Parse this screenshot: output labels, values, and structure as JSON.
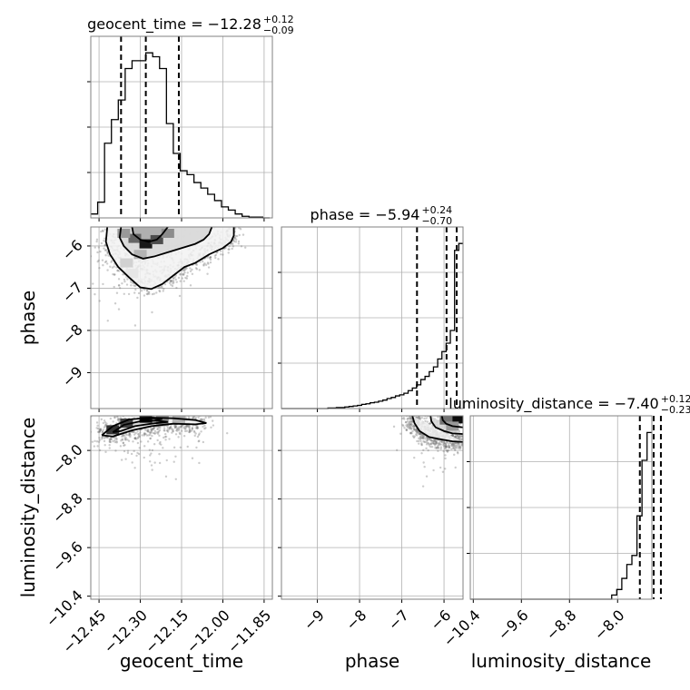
{
  "chart_data": {
    "type": "corner",
    "parameters": [
      "geocent_time",
      "phase",
      "luminosity_distance"
    ],
    "axis_labels": {
      "geocent_time": "geocent_time",
      "phase": "phase",
      "luminosity_distance": "luminosity_distance"
    },
    "ranges": {
      "geocent_time": [
        -12.48,
        -11.82
      ],
      "phase": [
        -9.85,
        -5.55
      ],
      "luminosity_distance": [
        -10.45,
        -7.43
      ]
    },
    "ticks": {
      "geocent_time": [
        -12.45,
        -12.3,
        -12.15,
        -12.0,
        -11.85
      ],
      "phase": [
        -9,
        -8,
        -7,
        -6
      ],
      "luminosity_distance": [
        -10.4,
        -9.6,
        -8.8,
        -8.0
      ]
    },
    "tick_labels": {
      "geocent_time": [
        "−12.45",
        "−12.30",
        "−12.15",
        "−12.00",
        "−11.85"
      ],
      "phase": [
        "−9",
        "−8",
        "−7",
        "−6"
      ],
      "luminosity_distance": [
        "−10.4",
        "−9.6",
        "−8.8",
        "−8.0"
      ]
    },
    "titles": {
      "geocent_time": {
        "name": "geocent_time",
        "median": "−12.28",
        "plus": "+0.12",
        "minus": "−0.09"
      },
      "phase": {
        "name": "phase",
        "median": "−5.94",
        "plus": "+0.24",
        "minus": "−0.70"
      },
      "luminosity_distance": {
        "name": "luminosity_distance",
        "median": "−7.40",
        "plus": "+0.12",
        "minus": "−0.23"
      }
    },
    "quantiles": {
      "geocent_time": [
        -12.37,
        -12.28,
        -12.16
      ],
      "phase": [
        -6.64,
        -5.94,
        -5.7
      ],
      "luminosity_distance": [
        -7.63,
        -7.4,
        -7.28
      ]
    },
    "histograms": {
      "geocent_time": {
        "edges": [
          -12.48,
          -12.455,
          -12.43,
          -12.405,
          -12.38,
          -12.355,
          -12.33,
          -12.305,
          -12.28,
          -12.255,
          -12.23,
          -12.205,
          -12.18,
          -12.155,
          -12.13,
          -12.105,
          -12.08,
          -12.055,
          -12.03,
          -12.005,
          -11.98,
          -11.955,
          -11.93,
          -11.905,
          -11.88,
          -11.855,
          -11.83
        ],
        "counts": [
          5,
          20,
          95,
          125,
          150,
          190,
          200,
          200,
          210,
          205,
          190,
          120,
          82,
          60,
          55,
          45,
          38,
          30,
          22,
          14,
          10,
          5,
          2,
          1,
          1,
          0
        ]
      },
      "phase": {
        "edges": [
          -9.85,
          -9.75,
          -9.65,
          -9.55,
          -9.45,
          -9.35,
          -9.25,
          -9.15,
          -9.05,
          -8.95,
          -8.85,
          -8.75,
          -8.65,
          -8.55,
          -8.45,
          -8.35,
          -8.25,
          -8.15,
          -8.05,
          -7.95,
          -7.85,
          -7.75,
          -7.65,
          -7.55,
          -7.45,
          -7.35,
          -7.25,
          -7.15,
          -7.05,
          -6.95,
          -6.85,
          -6.75,
          -6.65,
          -6.55,
          -6.45,
          -6.35,
          -6.25,
          -6.15,
          -6.05,
          -5.95,
          -5.85,
          -5.75,
          -5.65,
          -5.55
        ],
        "counts": [
          0,
          0,
          0,
          0,
          0,
          0,
          0,
          0,
          0,
          0,
          0,
          1,
          1,
          2,
          2,
          3,
          4,
          5,
          6,
          8,
          9,
          11,
          12,
          14,
          16,
          19,
          21,
          24,
          26,
          29,
          34,
          39,
          45,
          55,
          61,
          70,
          79,
          94,
          108,
          124,
          148,
          300,
          313
        ]
      },
      "luminosity_distance": {
        "edges": [
          -10.45,
          -10.366,
          -10.282,
          -10.198,
          -10.114,
          -10.03,
          -9.946,
          -9.862,
          -9.778,
          -9.694,
          -9.61,
          -9.526,
          -9.442,
          -9.358,
          -9.274,
          -9.19,
          -9.106,
          -9.022,
          -8.938,
          -8.854,
          -8.77,
          -8.686,
          -8.602,
          -8.518,
          -8.434,
          -8.35,
          -8.266,
          -8.182,
          -8.098,
          -8.014,
          -7.93,
          -7.846,
          -7.762,
          -7.678,
          -7.594,
          -7.51,
          -7.43
        ],
        "counts": [
          0,
          0,
          0,
          0,
          0,
          0,
          0,
          0,
          0,
          0,
          0,
          0,
          0,
          0,
          0,
          0,
          0,
          0,
          0,
          0,
          0,
          0,
          0,
          0,
          0,
          0,
          0,
          0,
          6,
          14,
          30,
          50,
          63,
          120,
          200,
          240
        ]
      }
    },
    "contours_2d": {
      "phase_vs_geocent_time": [
        [
          [
            -12.42,
            -5.55
          ],
          [
            -12.425,
            -5.9
          ],
          [
            -12.41,
            -6.2
          ],
          [
            -12.38,
            -6.5
          ],
          [
            -12.34,
            -6.75
          ],
          [
            -12.3,
            -6.98
          ],
          [
            -12.26,
            -7.02
          ],
          [
            -12.22,
            -6.9
          ],
          [
            -12.18,
            -6.7
          ],
          [
            -12.14,
            -6.5
          ],
          [
            -12.1,
            -6.4
          ],
          [
            -12.05,
            -6.2
          ],
          [
            -12.0,
            -6.05
          ],
          [
            -11.97,
            -5.9
          ],
          [
            -11.96,
            -5.75
          ],
          [
            -11.96,
            -5.55
          ]
        ],
        [
          [
            -12.37,
            -5.55
          ],
          [
            -12.375,
            -5.8
          ],
          [
            -12.36,
            -6.0
          ],
          [
            -12.33,
            -6.2
          ],
          [
            -12.29,
            -6.3
          ],
          [
            -12.25,
            -6.25
          ],
          [
            -12.2,
            -6.15
          ],
          [
            -12.15,
            -6.05
          ],
          [
            -12.1,
            -5.95
          ],
          [
            -12.07,
            -5.85
          ],
          [
            -12.05,
            -5.72
          ],
          [
            -12.04,
            -5.55
          ]
        ],
        [
          [
            -12.33,
            -5.55
          ],
          [
            -12.325,
            -5.72
          ],
          [
            -12.3,
            -5.85
          ],
          [
            -12.27,
            -5.9
          ],
          [
            -12.24,
            -5.85
          ],
          [
            -12.22,
            -5.72
          ],
          [
            -12.2,
            -5.55
          ]
        ]
      ],
      "luminosity_distance_vs_geocent_time": [
        [
          [
            -12.44,
            -7.75
          ],
          [
            -12.4,
            -7.6
          ],
          [
            -12.34,
            -7.49
          ],
          [
            -12.26,
            -7.46
          ],
          [
            -12.18,
            -7.47
          ],
          [
            -12.1,
            -7.5
          ],
          [
            -12.06,
            -7.55
          ],
          [
            -12.1,
            -7.57
          ],
          [
            -12.18,
            -7.56
          ],
          [
            -12.26,
            -7.6
          ],
          [
            -12.33,
            -7.67
          ],
          [
            -12.4,
            -7.77
          ],
          [
            -12.44,
            -7.75
          ]
        ],
        [
          [
            -12.4,
            -7.7
          ],
          [
            -12.36,
            -7.58
          ],
          [
            -12.3,
            -7.52
          ],
          [
            -12.24,
            -7.51
          ],
          [
            -12.2,
            -7.53
          ],
          [
            -12.26,
            -7.56
          ],
          [
            -12.32,
            -7.6
          ],
          [
            -12.37,
            -7.68
          ],
          [
            -12.4,
            -7.7
          ]
        ],
        [
          [
            -12.3,
            -7.5
          ],
          [
            -12.26,
            -7.47
          ],
          [
            -12.22,
            -7.48
          ],
          [
            -12.25,
            -7.51
          ],
          [
            -12.3,
            -7.5
          ]
        ]
      ],
      "luminosity_distance_vs_phase": [
        [
          [
            -6.75,
            -7.43
          ],
          [
            -6.7,
            -7.55
          ],
          [
            -6.58,
            -7.68
          ],
          [
            -6.35,
            -7.78
          ],
          [
            -6.05,
            -7.82
          ],
          [
            -5.8,
            -7.85
          ],
          [
            -5.55,
            -7.86
          ]
        ],
        [
          [
            -6.32,
            -7.43
          ],
          [
            -6.3,
            -7.52
          ],
          [
            -6.2,
            -7.62
          ],
          [
            -6.0,
            -7.68
          ],
          [
            -5.8,
            -7.72
          ],
          [
            -5.55,
            -7.73
          ]
        ],
        [
          [
            -6.05,
            -7.43
          ],
          [
            -6.03,
            -7.5
          ],
          [
            -5.95,
            -7.56
          ],
          [
            -5.8,
            -7.6
          ],
          [
            -5.55,
            -7.62
          ]
        ]
      ]
    },
    "density_peaks": {
      "phase_vs_geocent_time": [
        [
          -12.32,
          -5.82,
          0.6
        ],
        [
          -12.28,
          -5.95,
          0.9
        ],
        [
          -12.24,
          -5.85,
          0.7
        ],
        [
          -12.36,
          -5.7,
          0.4
        ],
        [
          -12.2,
          -5.7,
          0.45
        ],
        [
          -12.3,
          -6.2,
          0.3
        ],
        [
          -12.35,
          -6.4,
          0.18
        ],
        [
          -12.33,
          -6.65,
          0.1
        ]
      ],
      "luminosity_distance_vs_geocent_time": [
        [
          -12.28,
          -7.47,
          0.9
        ],
        [
          -12.35,
          -7.55,
          0.75
        ],
        [
          -12.4,
          -7.66,
          0.8
        ],
        [
          -12.22,
          -7.5,
          0.45
        ],
        [
          -12.16,
          -7.48,
          0.3
        ]
      ],
      "luminosity_distance_vs_phase": [
        [
          -5.7,
          -7.48,
          0.95
        ],
        [
          -5.95,
          -7.5,
          0.55
        ],
        [
          -5.8,
          -7.6,
          0.4
        ]
      ]
    },
    "grid": true
  }
}
